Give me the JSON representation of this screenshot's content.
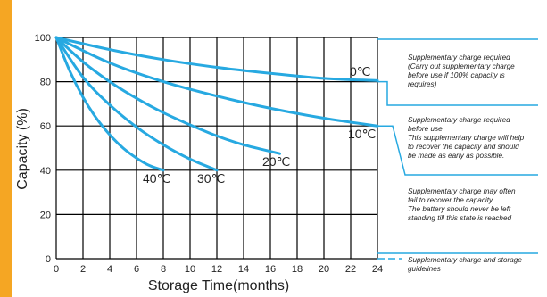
{
  "colors": {
    "accent_bar": "#f5a623",
    "curve": "#27a9e1",
    "grid": "#000000",
    "text": "#222222"
  },
  "chart_data": {
    "type": "line",
    "xlabel": "Storage Time(months)",
    "ylabel": "Capacity (%)",
    "xlim": [
      0,
      24
    ],
    "ylim": [
      0,
      100
    ],
    "x_ticks": [
      0,
      2,
      4,
      6,
      8,
      10,
      12,
      14,
      16,
      18,
      20,
      22,
      24
    ],
    "y_ticks": [
      0,
      20,
      40,
      60,
      80,
      100
    ],
    "grid": true,
    "series": [
      {
        "name": "0℃",
        "x": [
          0,
          4,
          8,
          12,
          16,
          20,
          24
        ],
        "y": [
          100,
          94.5,
          90.0,
          86.5,
          83.8,
          81.5,
          80.5
        ]
      },
      {
        "name": "10℃",
        "x": [
          0,
          4,
          8,
          12,
          16,
          20,
          24
        ],
        "y": [
          100,
          88.5,
          80.0,
          73.5,
          68.0,
          63.5,
          60.0
        ]
      },
      {
        "name": "20℃",
        "x": [
          0,
          2,
          4,
          6,
          8,
          10,
          12,
          14,
          16.7
        ],
        "y": [
          100,
          89.0,
          80.0,
          72.5,
          66.0,
          60.5,
          55.5,
          51.5,
          47.5
        ]
      },
      {
        "name": "30℃",
        "x": [
          0,
          2,
          4,
          6,
          8,
          10,
          12
        ],
        "y": [
          100,
          82.0,
          69.5,
          59.5,
          51.5,
          45.0,
          40.0
        ]
      },
      {
        "name": "40℃",
        "x": [
          0,
          1,
          2,
          3,
          4,
          5,
          6,
          7,
          8
        ],
        "y": [
          100,
          85.0,
          73.0,
          63.5,
          56.0,
          50.0,
          45.5,
          42.0,
          40.0
        ]
      }
    ],
    "zones": [
      {
        "from": 80,
        "to": 100,
        "text": "Supplementary charge required\n(Carry out supplementary charge\nbefore use if 100% capacity is\nrequires)"
      },
      {
        "from": 60,
        "to": 80,
        "text": "Supplementary charge required\nbefore use.\nThis supplementary charge will help\nto recover the capacity and should\nbe made  as early as possible."
      },
      {
        "from": 0,
        "to": 60,
        "text": "Supplementary charge may often\nfail to recover the capacity.\nThe battery should never be left\nstanding till this state is reached"
      }
    ],
    "legend_note": "Supplementary charge and storage\nguidelines"
  }
}
